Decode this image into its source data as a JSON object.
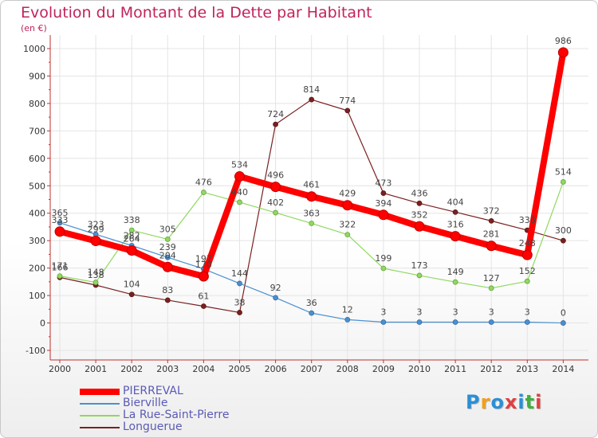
{
  "header": {
    "title": "Evolution du Montant de la Dette par Habitant",
    "unit": "(en €)"
  },
  "logo": {
    "text": "Proxiti",
    "colors": [
      "#2a8fd6",
      "#f0a020",
      "#2a8fd6",
      "#e04040",
      "#2a8fd6",
      "#40b040",
      "#e04040"
    ]
  },
  "chart_data": {
    "type": "line",
    "title": "Evolution du Montant de la Dette par Habitant",
    "ylabel": "(en €)",
    "xlabel": "",
    "ylim": [
      -100,
      1000
    ],
    "yticks": [
      -100,
      0,
      100,
      200,
      300,
      400,
      500,
      600,
      700,
      800,
      900,
      1000
    ],
    "x": [
      "2000",
      "2001",
      "2002",
      "2003",
      "2004",
      "2005",
      "2006",
      "2007",
      "2008",
      "2009",
      "2010",
      "2011",
      "2012",
      "2013",
      "2014"
    ],
    "legend_position": "bottom-left",
    "series": [
      {
        "name": "Longuerue",
        "color": "#7a2020",
        "values": [
          166,
          138,
          104,
          83,
          61,
          38,
          724,
          814,
          774,
          473,
          436,
          404,
          372,
          338,
          300
        ]
      },
      {
        "name": "La Rue-Saint-Pierre",
        "color": "#90d860",
        "values": [
          171,
          148,
          338,
          305,
          476,
          440,
          402,
          363,
          322,
          199,
          173,
          149,
          127,
          152,
          514
        ]
      },
      {
        "name": "Bierville",
        "color": "#4a90d0",
        "values": [
          365,
          323,
          282,
          239,
          197,
          144,
          92,
          36,
          12,
          3,
          3,
          3,
          3,
          3,
          0
        ]
      },
      {
        "name": "PIERREVAL",
        "color": "#ff0000",
        "values": [
          333,
          299,
          264,
          204,
          170,
          534,
          496,
          461,
          429,
          394,
          352,
          316,
          281,
          248,
          986
        ]
      }
    ]
  }
}
